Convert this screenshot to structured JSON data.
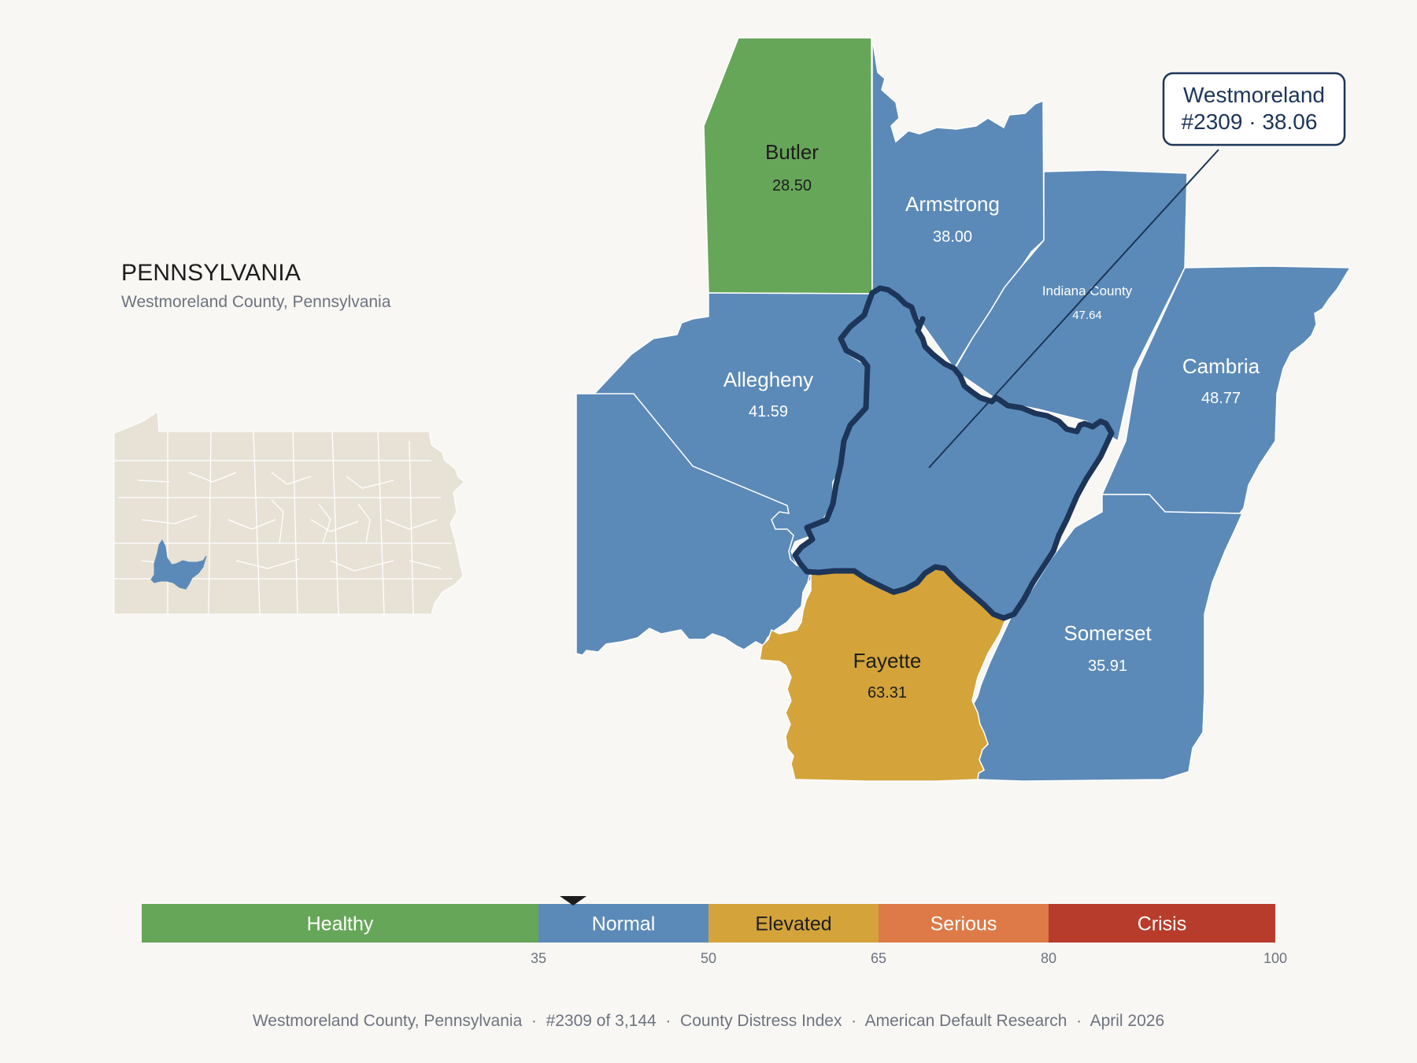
{
  "header": {
    "state_name": "PENNSYLVANIA",
    "subtitle": "Westmoreland County, Pennsylvania"
  },
  "colors": {
    "background": "#f9f7f3",
    "healthy": "#66a658",
    "normal": "#5b8ab8",
    "elevated": "#d4a43a",
    "serious": "#dd7a48",
    "crisis": "#b83c2b",
    "highlight_outline": "#1c3559",
    "inset_fill": "#e8e2d6"
  },
  "focus_county": {
    "name": "Westmoreland",
    "rank_score": "#2309 · 38.06",
    "score": 38.06,
    "rating": "Normal"
  },
  "counties": [
    {
      "name": "Butler",
      "value": "28.50",
      "rating": "Healthy"
    },
    {
      "name": "Armstrong",
      "value": "38.00",
      "rating": "Normal"
    },
    {
      "name": "Indiana County",
      "value": "47.64",
      "rating": "Normal"
    },
    {
      "name": "Allegheny",
      "value": "41.59",
      "rating": "Normal"
    },
    {
      "name": "Cambria",
      "value": "48.77",
      "rating": "Normal"
    },
    {
      "name": "Fayette",
      "value": "63.31",
      "rating": "Elevated"
    },
    {
      "name": "Somerset",
      "value": "35.91",
      "rating": "Normal"
    }
  ],
  "legend": {
    "min": 0,
    "max": 100,
    "marker_value": 38.06,
    "bands": [
      {
        "label": "Healthy",
        "from": 0,
        "to": 35,
        "color": "#66a658",
        "text_color": "#ffffff"
      },
      {
        "label": "Normal",
        "from": 35,
        "to": 50,
        "color": "#5b8ab8",
        "text_color": "#ffffff"
      },
      {
        "label": "Elevated",
        "from": 50,
        "to": 65,
        "color": "#d4a43a",
        "text_color": "#1d1d1d"
      },
      {
        "label": "Serious",
        "from": 65,
        "to": 80,
        "color": "#dd7a48",
        "text_color": "#ffffff"
      },
      {
        "label": "Crisis",
        "from": 80,
        "to": 100,
        "color": "#b83c2b",
        "text_color": "#ffffff"
      }
    ],
    "ticks": [
      "35",
      "50",
      "65",
      "80",
      "100"
    ]
  },
  "footer": {
    "text": "Westmoreland County, Pennsylvania  ·  #2309 of 3,144  ·  County Distress Index  ·  American Default Research  ·  April 2026"
  }
}
